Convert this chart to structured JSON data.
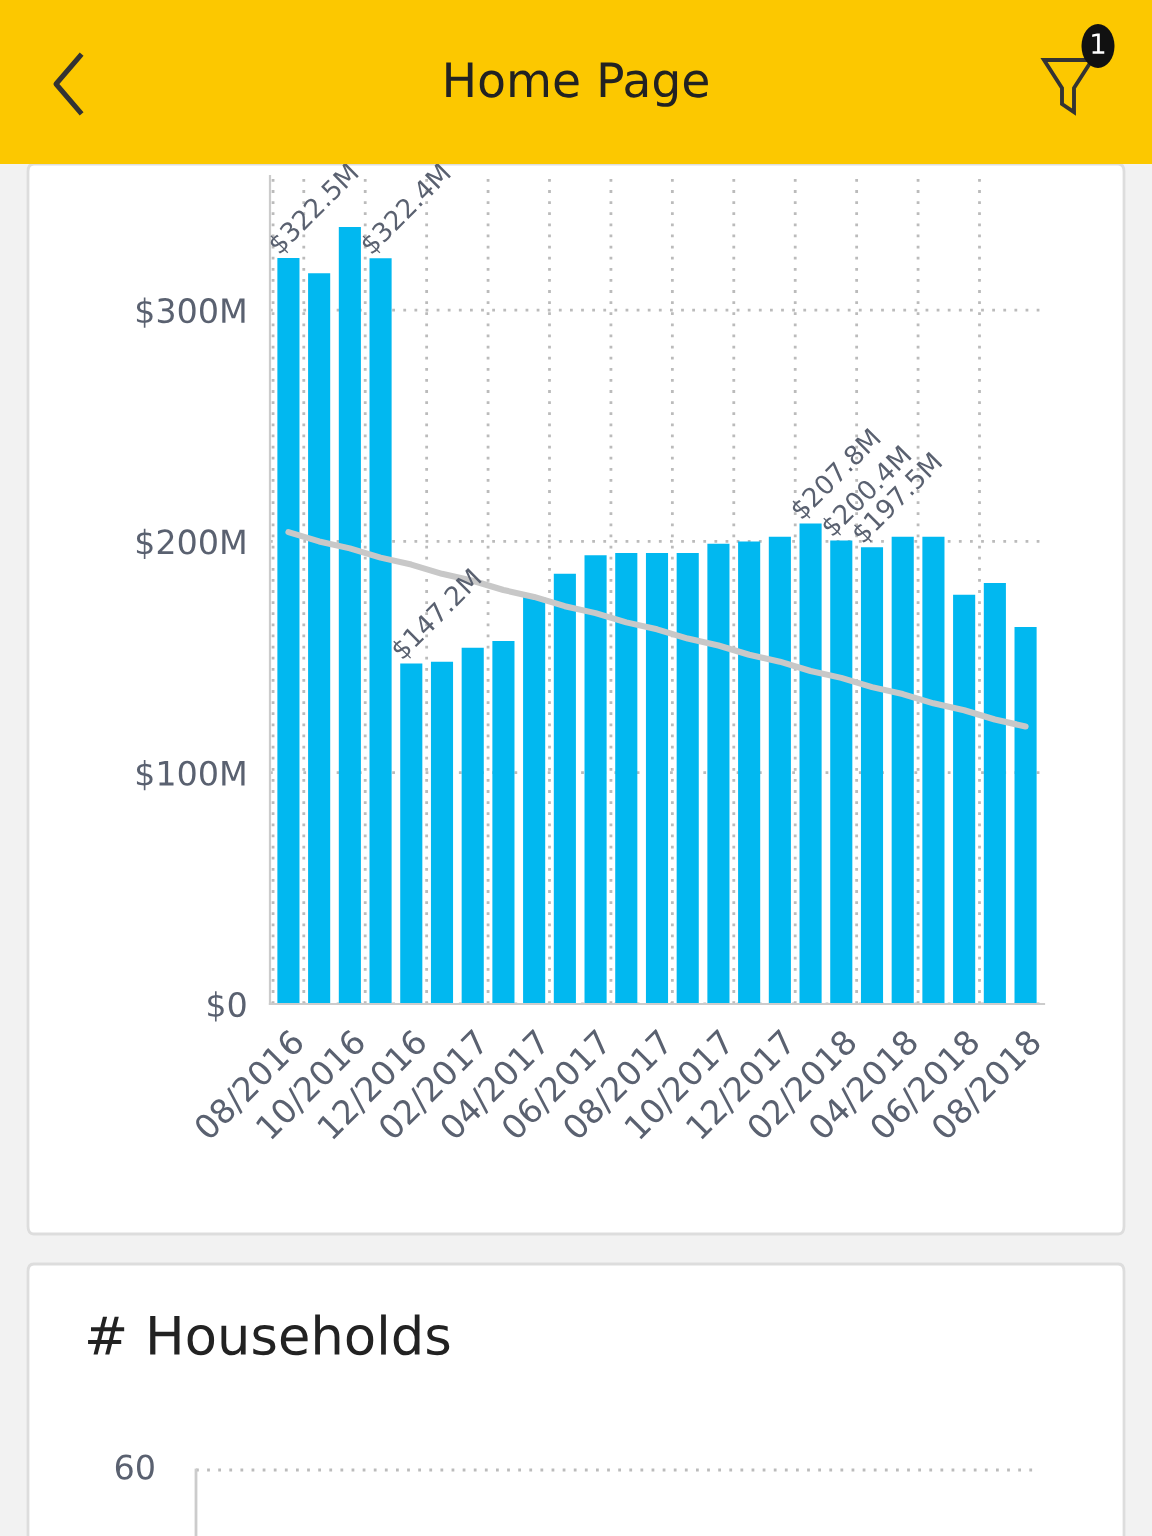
{
  "chart_data": [
    {
      "type": "bar",
      "annotations": [
        "Home Page",
        "1"
      ],
      "categories": [
        "08/2016",
        null,
        "10/2016",
        null,
        "12/2016",
        null,
        "02/2017",
        null,
        "04/2017",
        null,
        "06/2017",
        null,
        "08/2017",
        null,
        "10/2017",
        null,
        "12/2017",
        null,
        "02/2018",
        null,
        "04/2018",
        null,
        "06/2018",
        null,
        "08/2018"
      ],
      "series": [
        {
          "type": "bar",
          "color": "#01b8f0",
          "values": [
            322.5,
            316,
            336,
            322.4,
            147.2,
            148,
            154,
            157,
            176,
            186,
            194,
            195,
            195,
            195,
            199,
            200,
            202,
            207.8,
            200.4,
            197.5,
            202,
            202,
            177,
            182,
            163
          ],
          "value_labels": [
            "$322.5M",
            null,
            null,
            "$322.4M",
            "$147.2M",
            null,
            null,
            null,
            null,
            null,
            null,
            null,
            null,
            null,
            null,
            null,
            null,
            "$207.8M",
            "$200.4M",
            "$197.5M",
            null,
            null,
            null,
            null,
            null
          ]
        },
        {
          "type": "line",
          "color": "#c8c8c8",
          "values": [
            204,
            200,
            197,
            193,
            190,
            186,
            183,
            179,
            176,
            172,
            169,
            165,
            162,
            158,
            155,
            151,
            148,
            144,
            141,
            137,
            134,
            130,
            127,
            123,
            120
          ]
        }
      ],
      "ylim": [
        0,
        358
      ],
      "yticks": [
        {
          "value": 0,
          "label": "$0"
        },
        {
          "value": 100,
          "label": "$100M"
        },
        {
          "value": 200,
          "label": "$200M"
        },
        {
          "value": 300,
          "label": "$300M"
        }
      ],
      "grid": true,
      "legend": false
    },
    {
      "type": "other",
      "title": "# Households",
      "annotations": [
        "60"
      ]
    }
  ]
}
